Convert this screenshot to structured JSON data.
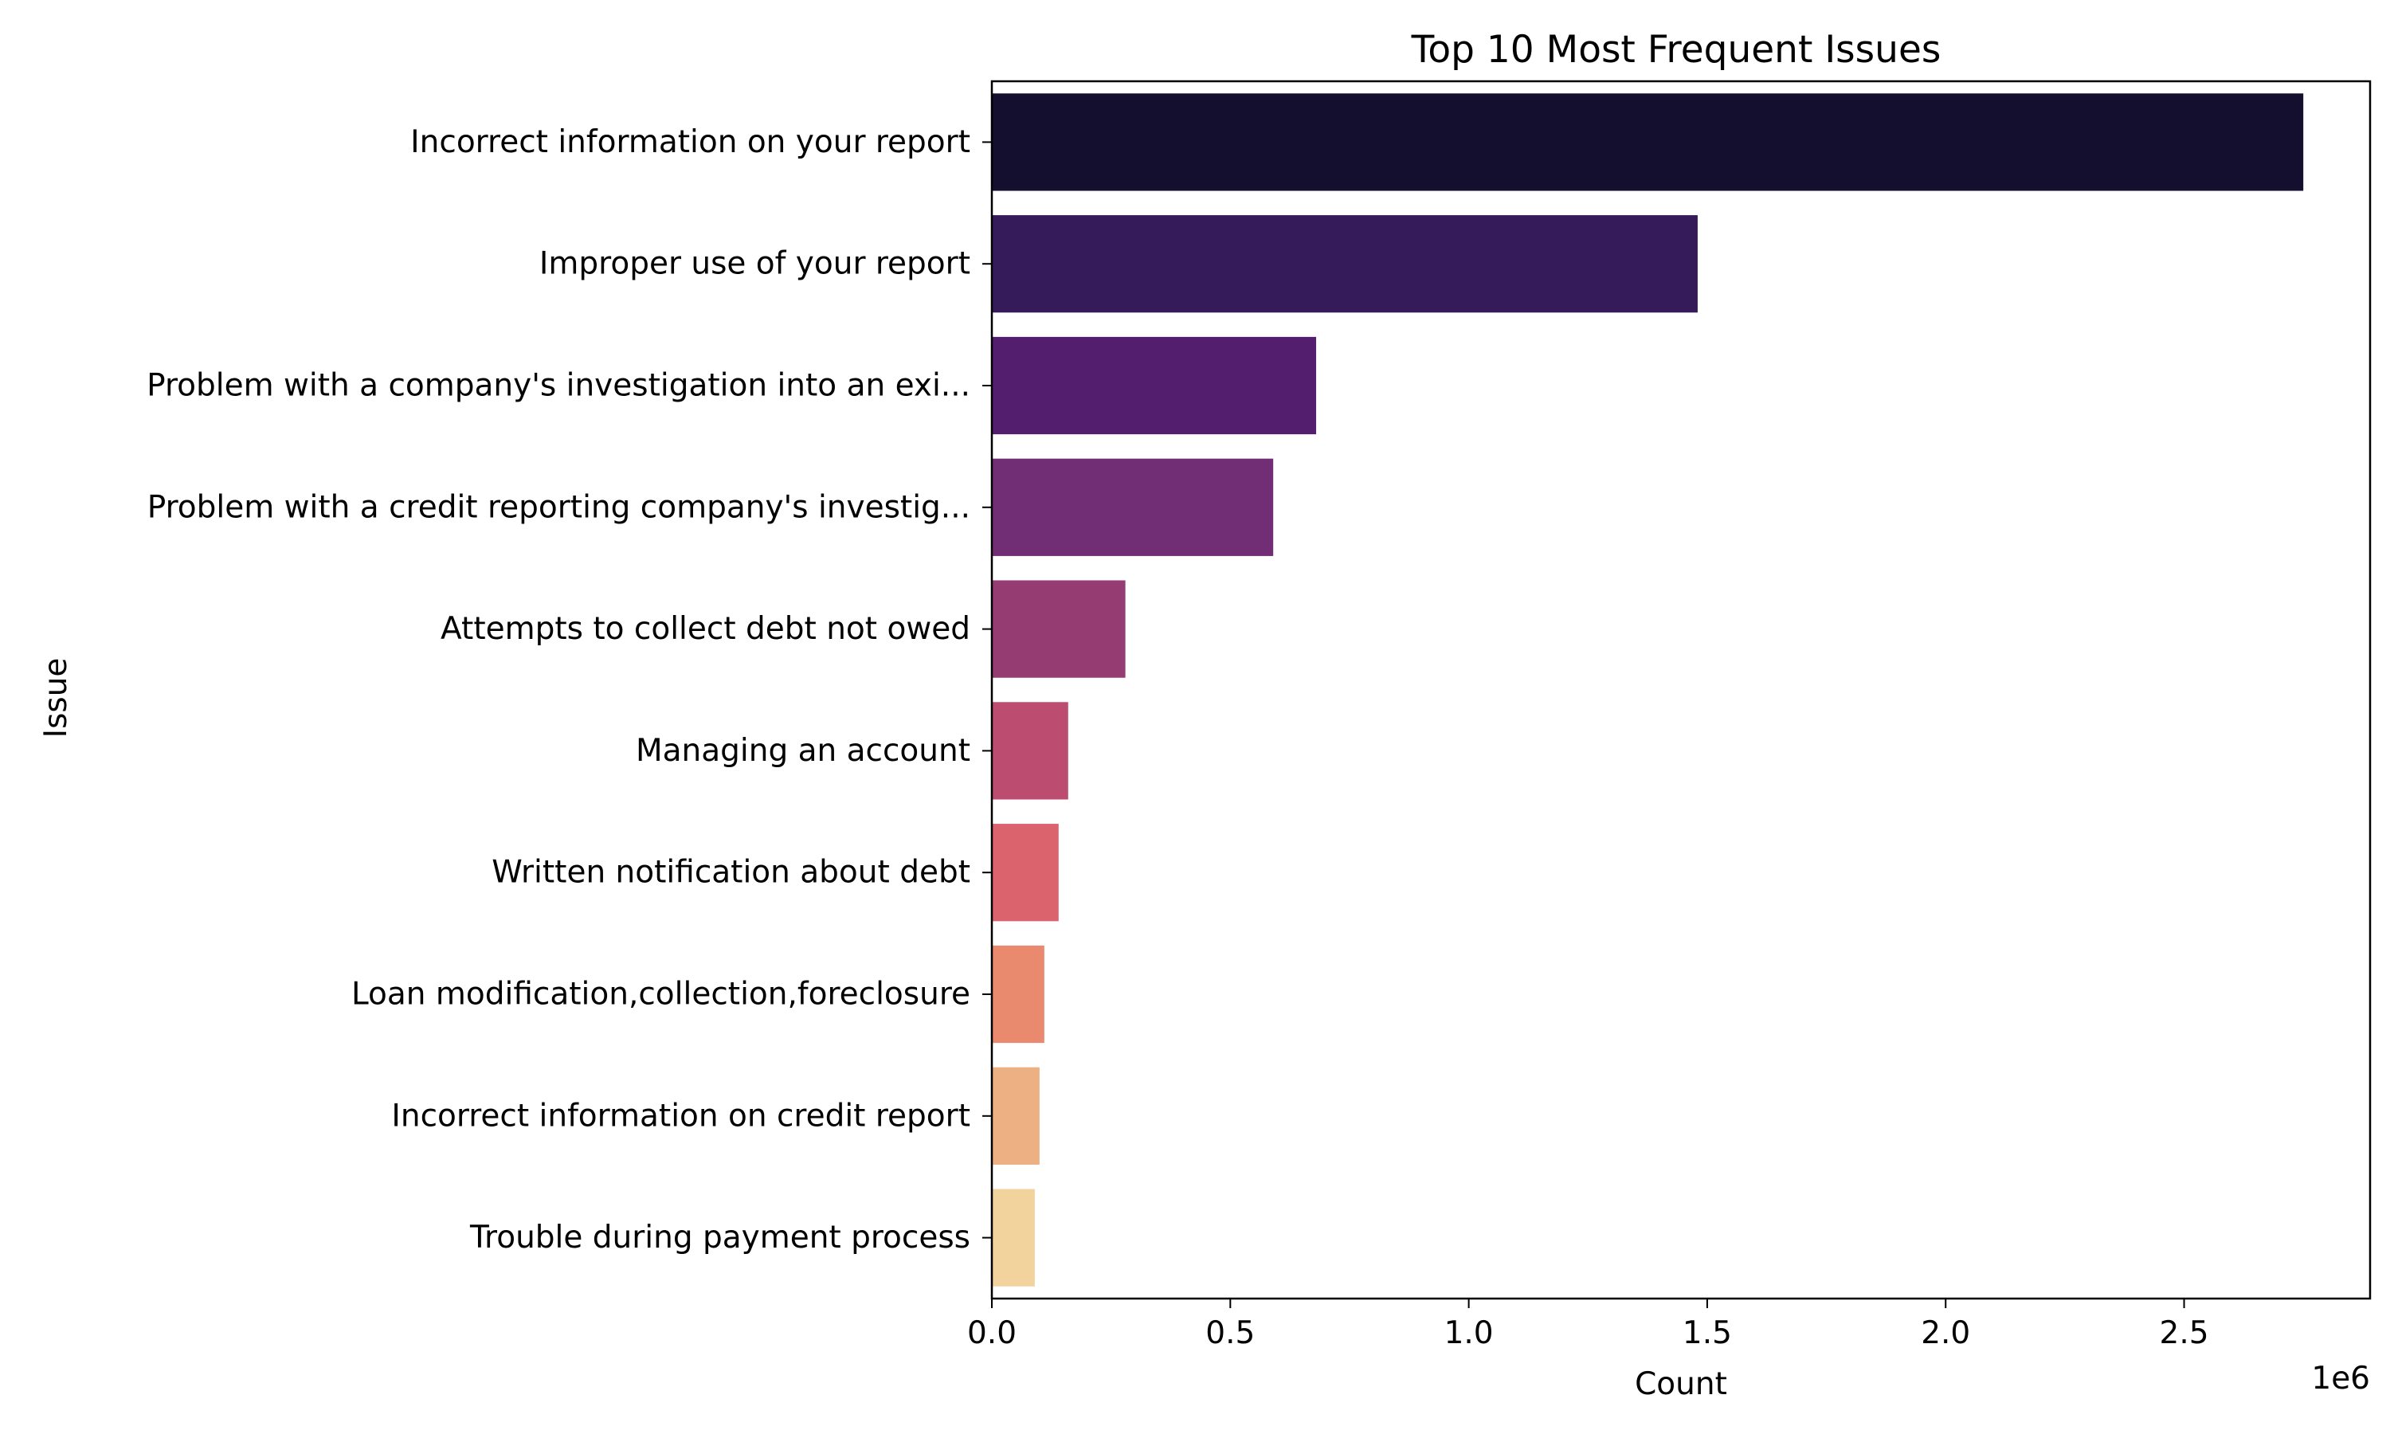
{
  "chart_data": {
    "type": "bar",
    "orientation": "horizontal",
    "title": "Top 10 Most Frequent Issues",
    "xlabel": "Count",
    "ylabel": "Issue",
    "x_offset_label": "1e6",
    "xlim": [
      0,
      2.89
    ],
    "x_ticks": [
      0.0,
      0.5,
      1.0,
      1.5,
      2.0,
      2.5
    ],
    "x_tick_labels": [
      "0.0",
      "0.5",
      "1.0",
      "1.5",
      "2.0",
      "2.5"
    ],
    "grid": false,
    "legend": false,
    "categories": [
      "Incorrect information on your report",
      "Improper use of your report",
      "Problem with a company's investigation into an exi...",
      "Problem with a credit reporting company's investig...",
      "Attempts to collect debt not owed",
      "Managing an account",
      "Written notification about debt",
      "Loan modification,collection,foreclosure",
      "Incorrect information on credit report",
      "Trouble during payment process"
    ],
    "values": [
      2.75,
      1.48,
      0.68,
      0.59,
      0.28,
      0.16,
      0.14,
      0.11,
      0.1,
      0.09
    ],
    "colors": [
      "#140f2e",
      "#361b5b",
      "#541e6f",
      "#722e74",
      "#953c73",
      "#bc4d71",
      "#db636e",
      "#e98a6e",
      "#edb083",
      "#f2d39d"
    ]
  }
}
